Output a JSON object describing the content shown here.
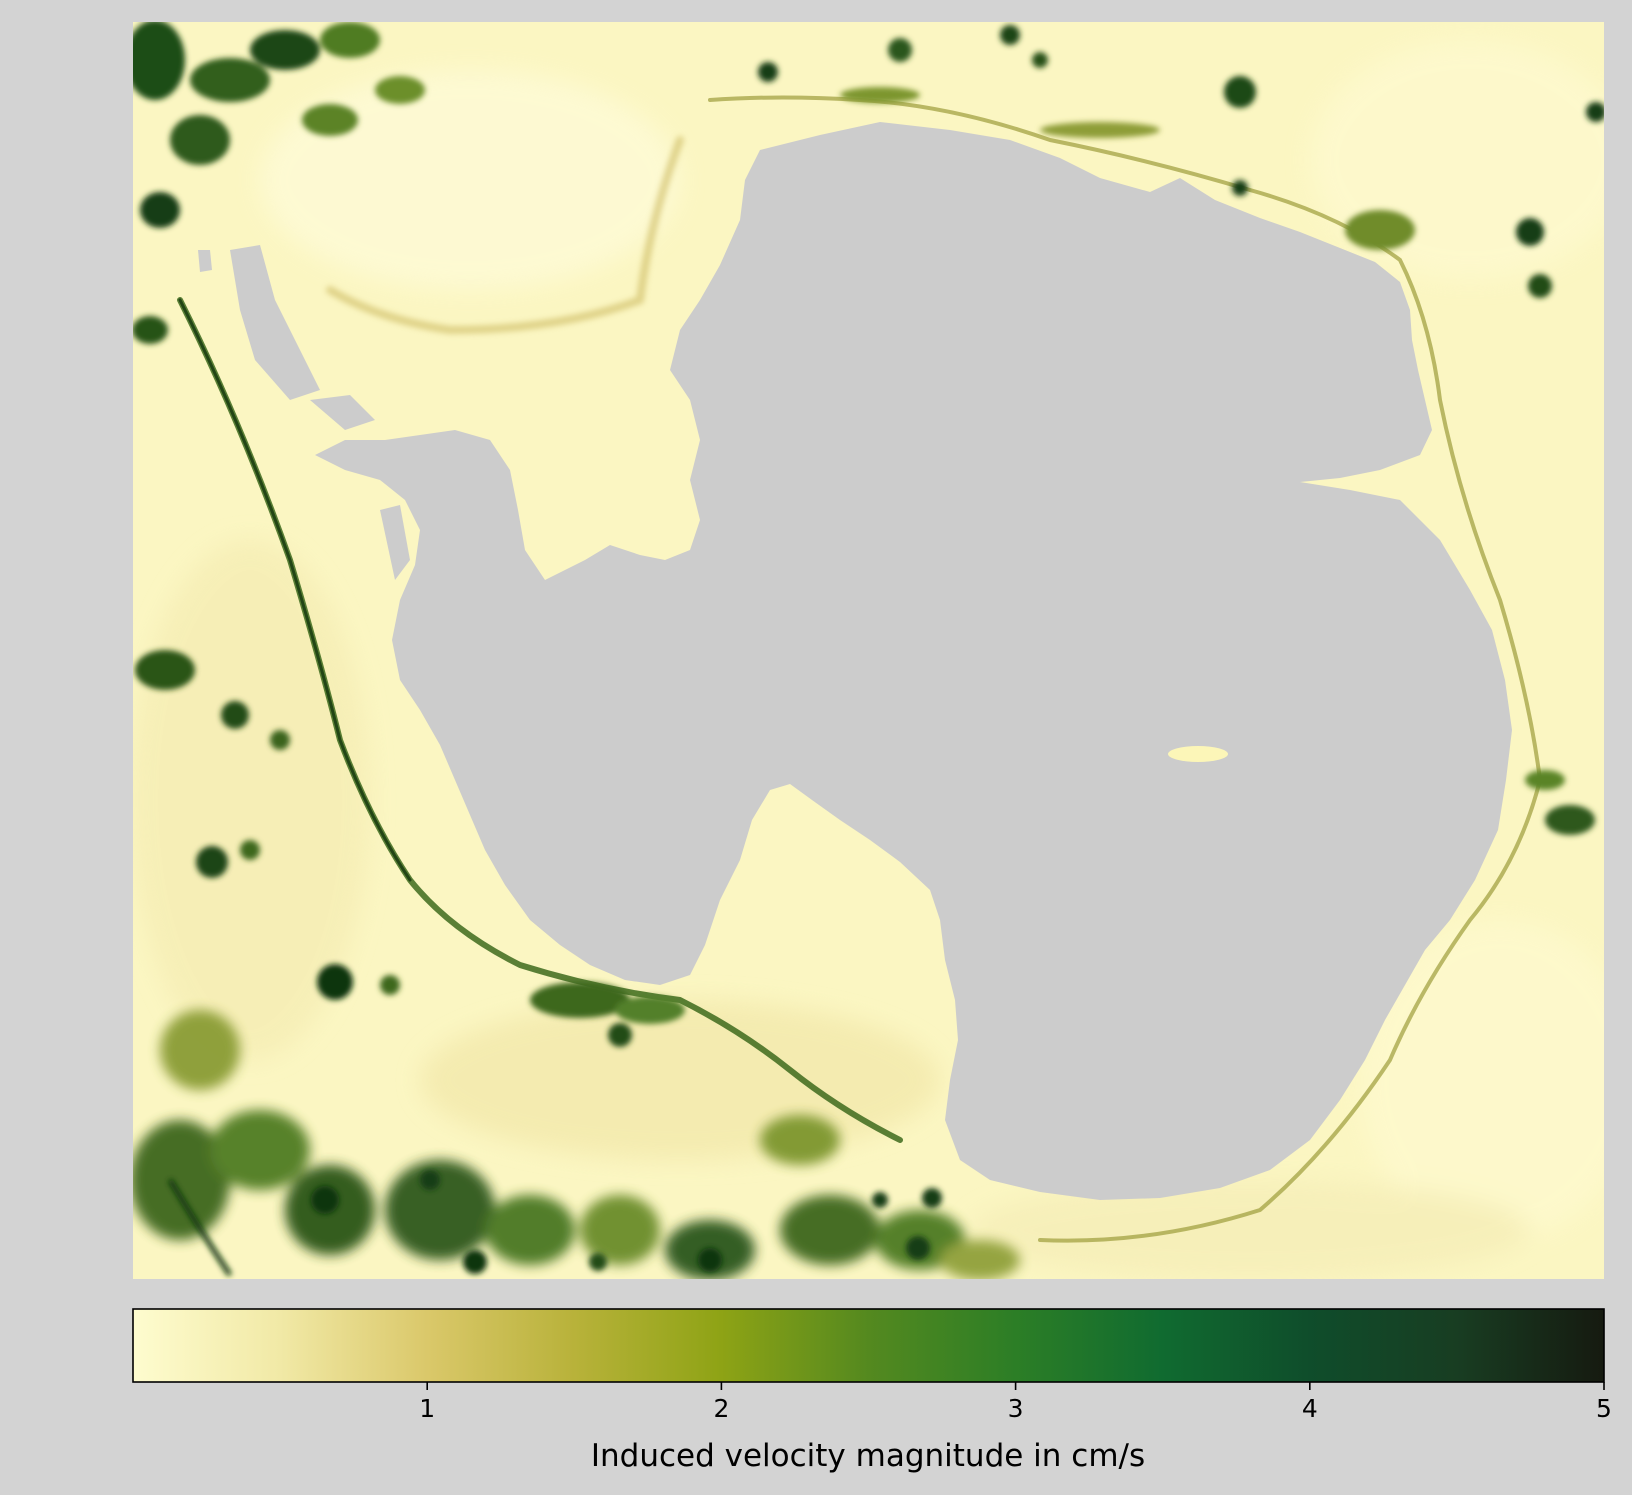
{
  "map": {
    "land_color": "#cccccc",
    "background_color": "#d3d3d3",
    "ocean_low_color": "#fdfbc9"
  },
  "colorbar": {
    "label": "Induced velocity magnitude in cm/s",
    "min": 0,
    "max": 5,
    "ticks": [
      {
        "value": 1,
        "label": "1"
      },
      {
        "value": 2,
        "label": "2"
      },
      {
        "value": 3,
        "label": "3"
      },
      {
        "value": 4,
        "label": "4"
      },
      {
        "value": 5,
        "label": "5"
      }
    ],
    "stops": [
      {
        "value": 0.0,
        "color": "#fefccf"
      },
      {
        "value": 0.5,
        "color": "#f1e9a6"
      },
      {
        "value": 1.0,
        "color": "#dac86a"
      },
      {
        "value": 1.5,
        "color": "#b8b23a"
      },
      {
        "value": 2.0,
        "color": "#8ea315"
      },
      {
        "value": 2.5,
        "color": "#54891f"
      },
      {
        "value": 3.0,
        "color": "#2c7e26"
      },
      {
        "value": 3.5,
        "color": "#106b30"
      },
      {
        "value": 4.0,
        "color": "#0f4d2b"
      },
      {
        "value": 4.5,
        "color": "#183d22"
      },
      {
        "value": 5.0,
        "color": "#161a10"
      }
    ]
  }
}
